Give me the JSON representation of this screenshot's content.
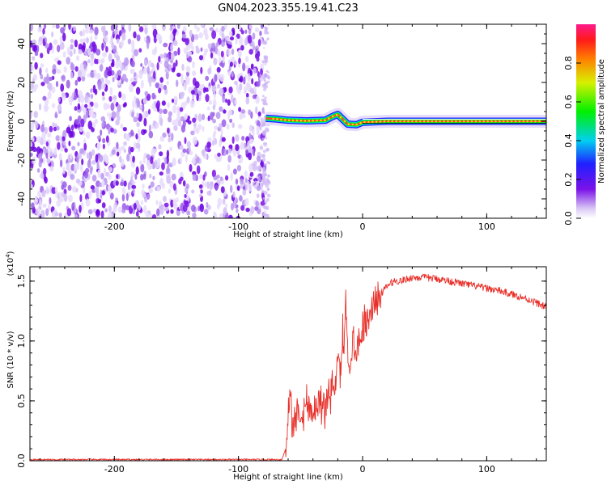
{
  "title": "GN04.2023.355.19.41.C23",
  "chart_data": [
    {
      "type": "heatmap",
      "name": "spectrogram",
      "xlabel": "Height of straight line (km)",
      "ylabel": "Frequency (Hz)",
      "xlim": [
        -268,
        148
      ],
      "ylim": [
        -50,
        50
      ],
      "x_ticks": [
        -200,
        -100,
        0,
        100
      ],
      "x_tick_labels": [
        "-200",
        "-100",
        "0",
        "100"
      ],
      "y_ticks": [
        -40,
        -20,
        0,
        20,
        40
      ],
      "y_tick_labels": [
        "-40",
        "-20",
        "0",
        "20",
        "40"
      ],
      "noise_region_x": [
        -268,
        -78
      ],
      "signal_band_freq_hz": 0,
      "signal_band_x": [
        -78,
        148
      ],
      "signal_track": [
        {
          "x": -78,
          "f": 1.5
        },
        {
          "x": -70,
          "f": 1.2
        },
        {
          "x": -60,
          "f": 0.5
        },
        {
          "x": -45,
          "f": 0.2
        },
        {
          "x": -30,
          "f": 0.5
        },
        {
          "x": -24,
          "f": 2.5
        },
        {
          "x": -20,
          "f": 3.5
        },
        {
          "x": -16,
          "f": 1.0
        },
        {
          "x": -12,
          "f": -1.5
        },
        {
          "x": -5,
          "f": -1.8
        },
        {
          "x": 0,
          "f": -0.5
        },
        {
          "x": 20,
          "f": 0.0
        },
        {
          "x": 148,
          "f": 0.0
        }
      ],
      "colorbar": {
        "label": "Normalized spectral amplitude",
        "range": [
          0,
          1
        ],
        "ticks": [
          0.0,
          0.2,
          0.4,
          0.6,
          0.8
        ],
        "tick_labels": [
          "0.0",
          "0.2",
          "0.4",
          "0.6",
          "0.8"
        ]
      },
      "grid": false
    },
    {
      "type": "line",
      "name": "snr",
      "xlabel": "Height of straight line (km)",
      "ylabel": "SNR (10 * v/v)",
      "y_scale_label": "(x10^4)",
      "xlim": [
        -268,
        148
      ],
      "ylim": [
        0,
        1.62
      ],
      "x_ticks": [
        -200,
        -100,
        0,
        100
      ],
      "x_tick_labels": [
        "-200",
        "-100",
        "0",
        "100"
      ],
      "y_ticks": [
        0.0,
        0.5,
        1.0,
        1.5
      ],
      "y_tick_labels": [
        "0.0",
        "0.5",
        "1.0",
        "1.5"
      ],
      "color": "#e8302a",
      "x": [
        -268,
        -200,
        -100,
        -65,
        -62,
        -60,
        -58,
        -57,
        -55,
        -52,
        -50,
        -45,
        -40,
        -35,
        -30,
        -28,
        -25,
        -22,
        -20,
        -18,
        -16,
        -15,
        -14,
        -13,
        -12,
        -10,
        -8,
        -5,
        0,
        5,
        10,
        15,
        20,
        25,
        30,
        40,
        50,
        60,
        70,
        80,
        90,
        100,
        110,
        120,
        130,
        140,
        148
      ],
      "y": [
        0.01,
        0.01,
        0.01,
        0.01,
        0.1,
        0.4,
        0.62,
        0.3,
        0.35,
        0.45,
        0.38,
        0.48,
        0.42,
        0.5,
        0.45,
        0.55,
        0.6,
        0.65,
        0.85,
        0.7,
        1.05,
        0.8,
        1.42,
        1.2,
        0.9,
        0.8,
        1.0,
        0.95,
        1.1,
        1.2,
        1.35,
        1.4,
        1.46,
        1.5,
        1.5,
        1.53,
        1.53,
        1.52,
        1.5,
        1.48,
        1.46,
        1.44,
        1.42,
        1.39,
        1.36,
        1.32,
        1.28
      ],
      "grid": false
    }
  ]
}
